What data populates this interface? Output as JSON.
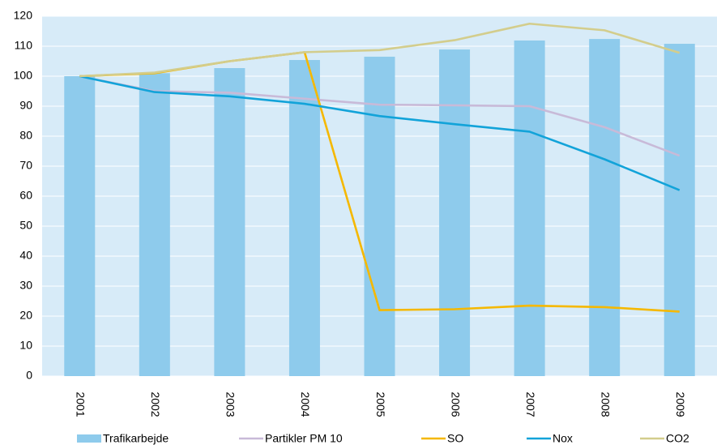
{
  "chart_data": {
    "type": "bar-line",
    "categories": [
      "2001",
      "2002",
      "2003",
      "2004",
      "2005",
      "2006",
      "2007",
      "2008",
      "2009"
    ],
    "series": [
      {
        "name": "Trafikarbejde",
        "type": "bar",
        "color": "#8ecbec",
        "values": [
          100,
          101,
          102.7,
          105.4,
          106.5,
          108.9,
          111.9,
          112.4,
          110.8
        ]
      },
      {
        "name": "Partikler PM 10",
        "type": "line",
        "color": "#c8bad8",
        "values": [
          100,
          95,
          94.5,
          92.5,
          90.5,
          90.3,
          90,
          83,
          73.5
        ]
      },
      {
        "name": "SO",
        "type": "line",
        "color": "#f5b800",
        "values": [
          100,
          101,
          105,
          108,
          22,
          22.3,
          23.5,
          23,
          21.5
        ]
      },
      {
        "name": "Nox",
        "type": "line",
        "color": "#12a3d9",
        "values": [
          100,
          94.7,
          93.3,
          90.8,
          86.7,
          84,
          81.5,
          72.3,
          62
        ]
      },
      {
        "name": "CO2",
        "type": "line",
        "color": "#d3cd8c",
        "values": [
          100,
          101.2,
          105,
          108,
          108.7,
          112,
          117.5,
          115.3,
          107.8
        ]
      }
    ],
    "ylim": [
      0,
      120
    ],
    "yticks": [
      0,
      10,
      20,
      30,
      40,
      50,
      60,
      70,
      80,
      90,
      100,
      110,
      120
    ],
    "background": "#d7ebf8",
    "grid": true
  }
}
